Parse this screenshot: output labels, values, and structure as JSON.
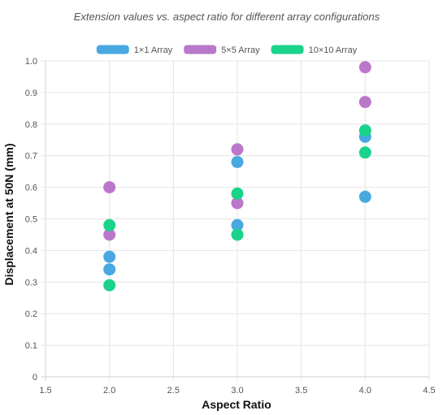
{
  "chart_data": {
    "type": "scatter",
    "title": "Extension values vs. aspect ratio for different array configurations",
    "xlabel": "Aspect Ratio",
    "ylabel": "Displacement at 50N (mm)",
    "xlim": [
      1.5,
      4.5
    ],
    "ylim": [
      0,
      1.0
    ],
    "x_ticks": [
      "1.5",
      "2.0",
      "2.5",
      "3.0",
      "3.5",
      "4.0",
      "4.5"
    ],
    "y_ticks": [
      "0",
      "0.1",
      "0.2",
      "0.3",
      "0.4",
      "0.5",
      "0.6",
      "0.7",
      "0.8",
      "0.9",
      "1.0"
    ],
    "grid": true,
    "legend_position": "top",
    "series": [
      {
        "name": "1×1 Array",
        "color": "#4aa8e0",
        "points": [
          {
            "x": 2.0,
            "y": 0.38
          },
          {
            "x": 2.0,
            "y": 0.34
          },
          {
            "x": 3.0,
            "y": 0.68
          },
          {
            "x": 3.0,
            "y": 0.48
          },
          {
            "x": 4.0,
            "y": 0.76
          },
          {
            "x": 4.0,
            "y": 0.57
          }
        ]
      },
      {
        "name": "5×5 Array",
        "color": "#b978c9",
        "points": [
          {
            "x": 2.0,
            "y": 0.6
          },
          {
            "x": 2.0,
            "y": 0.45
          },
          {
            "x": 3.0,
            "y": 0.72
          },
          {
            "x": 3.0,
            "y": 0.55
          },
          {
            "x": 4.0,
            "y": 0.98
          },
          {
            "x": 4.0,
            "y": 0.87
          }
        ]
      },
      {
        "name": "10×10 Array",
        "color": "#19d38a",
        "points": [
          {
            "x": 2.0,
            "y": 0.48
          },
          {
            "x": 2.0,
            "y": 0.29
          },
          {
            "x": 3.0,
            "y": 0.58
          },
          {
            "x": 3.0,
            "y": 0.45
          },
          {
            "x": 4.0,
            "y": 0.78
          },
          {
            "x": 4.0,
            "y": 0.71
          }
        ]
      }
    ]
  }
}
